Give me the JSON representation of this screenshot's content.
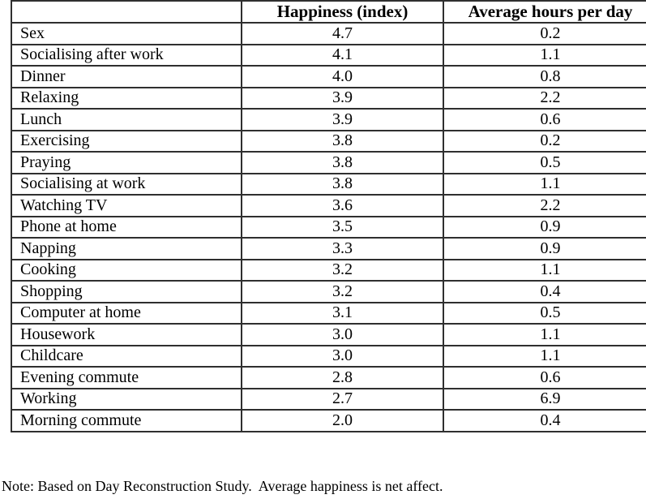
{
  "table": {
    "headers": [
      "",
      "Happiness (index)",
      "Average hours per day"
    ],
    "rows": [
      {
        "activity": "Sex",
        "happiness": "4.7",
        "hours": "0.2"
      },
      {
        "activity": "Socialising after work",
        "happiness": "4.1",
        "hours": "1.1"
      },
      {
        "activity": "Dinner",
        "happiness": "4.0",
        "hours": "0.8"
      },
      {
        "activity": "Relaxing",
        "happiness": "3.9",
        "hours": "2.2"
      },
      {
        "activity": "Lunch",
        "happiness": "3.9",
        "hours": "0.6"
      },
      {
        "activity": "Exercising",
        "happiness": "3.8",
        "hours": "0.2"
      },
      {
        "activity": "Praying",
        "happiness": "3.8",
        "hours": "0.5"
      },
      {
        "activity": "Socialising at work",
        "happiness": "3.8",
        "hours": "1.1"
      },
      {
        "activity": "Watching TV",
        "happiness": "3.6",
        "hours": "2.2"
      },
      {
        "activity": "Phone at home",
        "happiness": "3.5",
        "hours": "0.9"
      },
      {
        "activity": "Napping",
        "happiness": "3.3",
        "hours": "0.9"
      },
      {
        "activity": "Cooking",
        "happiness": "3.2",
        "hours": "1.1"
      },
      {
        "activity": "Shopping",
        "happiness": "3.2",
        "hours": "0.4"
      },
      {
        "activity": "Computer at home",
        "happiness": "3.1",
        "hours": "0.5"
      },
      {
        "activity": "Housework",
        "happiness": "3.0",
        "hours": "1.1"
      },
      {
        "activity": "Childcare",
        "happiness": "3.0",
        "hours": "1.1"
      },
      {
        "activity": "Evening commute",
        "happiness": "2.8",
        "hours": "0.6"
      },
      {
        "activity": "Working",
        "happiness": "2.7",
        "hours": "6.9"
      },
      {
        "activity": "Morning commute",
        "happiness": "2.0",
        "hours": "0.4"
      }
    ]
  },
  "note": "Note: Based on Day Reconstruction Study.  Average happiness is net affect.",
  "colors": {
    "border": "#2f2f2f",
    "text": "#000000",
    "background": "#ffffff"
  }
}
